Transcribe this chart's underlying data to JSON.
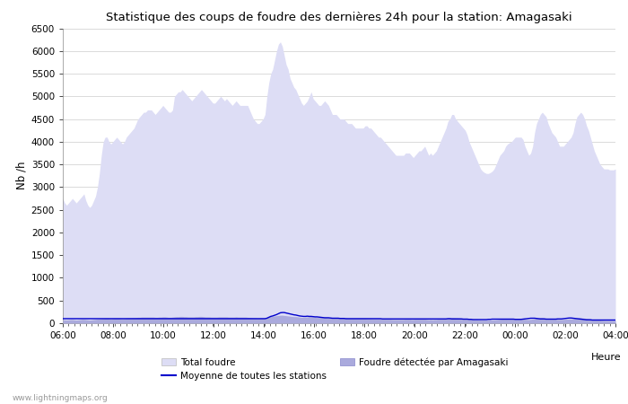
{
  "title": "Statistique des coups de foudre des dernières 24h pour la station: Amagasaki",
  "ylabel": "Nb /h",
  "xlabel": "Heure",
  "ylim": [
    0,
    6500
  ],
  "yticks": [
    0,
    500,
    1000,
    1500,
    2000,
    2500,
    3000,
    3500,
    4000,
    4500,
    5000,
    5500,
    6000,
    6500
  ],
  "xtick_labels": [
    "06:00",
    "08:00",
    "10:00",
    "12:00",
    "14:00",
    "16:00",
    "18:00",
    "20:00",
    "22:00",
    "00:00",
    "02:00",
    "04:00"
  ],
  "color_total": "#ddddf5",
  "color_station": "#aaaadd",
  "color_moyenne": "#0000cc",
  "watermark": "www.lightningmaps.org",
  "legend_total": "Total foudre",
  "legend_moyenne": "Moyenne de toutes les stations",
  "legend_station": "Foudre détectée par Amagasaki",
  "total_foudre": [
    2750,
    2650,
    2600,
    2650,
    2700,
    2750,
    2700,
    2650,
    2700,
    2750,
    2800,
    2850,
    2700,
    2600,
    2550,
    2600,
    2700,
    2800,
    3000,
    3300,
    3700,
    4000,
    4100,
    4100,
    4000,
    3950,
    4000,
    4050,
    4100,
    4050,
    4000,
    3950,
    4000,
    4100,
    4150,
    4200,
    4250,
    4300,
    4400,
    4500,
    4550,
    4600,
    4650,
    4650,
    4700,
    4700,
    4700,
    4650,
    4600,
    4650,
    4700,
    4750,
    4800,
    4750,
    4700,
    4650,
    4650,
    4700,
    5000,
    5050,
    5100,
    5100,
    5150,
    5100,
    5050,
    5000,
    4950,
    4900,
    4950,
    5000,
    5050,
    5100,
    5150,
    5100,
    5050,
    5000,
    4950,
    4900,
    4850,
    4850,
    4900,
    4950,
    5000,
    4950,
    4900,
    4950,
    4900,
    4850,
    4800,
    4850,
    4900,
    4850,
    4800,
    4800,
    4800,
    4800,
    4800,
    4700,
    4600,
    4500,
    4450,
    4400,
    4400,
    4450,
    4500,
    4600,
    5000,
    5300,
    5500,
    5600,
    5800,
    6000,
    6150,
    6200,
    6100,
    5900,
    5700,
    5600,
    5400,
    5300,
    5200,
    5150,
    5050,
    4950,
    4850,
    4800,
    4850,
    4900,
    5000,
    5100,
    4950,
    4900,
    4850,
    4800,
    4800,
    4850,
    4900,
    4850,
    4800,
    4700,
    4600,
    4600,
    4600,
    4550,
    4500,
    4500,
    4500,
    4450,
    4400,
    4400,
    4400,
    4350,
    4300,
    4300,
    4300,
    4300,
    4300,
    4350,
    4350,
    4300,
    4300,
    4250,
    4200,
    4150,
    4100,
    4100,
    4050,
    4000,
    3950,
    3900,
    3850,
    3800,
    3750,
    3700,
    3700,
    3700,
    3700,
    3700,
    3750,
    3750,
    3750,
    3700,
    3650,
    3700,
    3750,
    3800,
    3800,
    3850,
    3900,
    3800,
    3700,
    3750,
    3700,
    3750,
    3800,
    3900,
    4000,
    4100,
    4200,
    4300,
    4450,
    4500,
    4600,
    4600,
    4500,
    4450,
    4400,
    4350,
    4300,
    4250,
    4150,
    4000,
    3900,
    3800,
    3700,
    3600,
    3500,
    3400,
    3350,
    3320,
    3300,
    3300,
    3320,
    3350,
    3400,
    3500,
    3600,
    3700,
    3750,
    3800,
    3900,
    3950,
    3980,
    4000,
    4050,
    4100,
    4100,
    4100,
    4100,
    4050,
    3900,
    3800,
    3700,
    3750,
    3900,
    4200,
    4400,
    4500,
    4600,
    4650,
    4600,
    4550,
    4400,
    4300,
    4200,
    4150,
    4100,
    4000,
    3900,
    3900,
    3900,
    3950,
    4000,
    4050,
    4100,
    4200,
    4400,
    4550,
    4600,
    4650,
    4600,
    4500,
    4350,
    4250,
    4100,
    3950,
    3800,
    3700,
    3600,
    3500,
    3450,
    3400,
    3400,
    3400,
    3380,
    3380,
    3380,
    3400
  ],
  "station_foudre": [
    80,
    75,
    70,
    75,
    80,
    80,
    75,
    70,
    75,
    80,
    85,
    85,
    80,
    75,
    70,
    75,
    80,
    85,
    90,
    95,
    100,
    105,
    110,
    110,
    105,
    100,
    105,
    110,
    110,
    110,
    105,
    100,
    105,
    110,
    115,
    115,
    120,
    120,
    125,
    130,
    130,
    135,
    135,
    135,
    135,
    135,
    135,
    135,
    130,
    130,
    135,
    135,
    140,
    140,
    135,
    130,
    130,
    135,
    140,
    145,
    145,
    150,
    150,
    145,
    145,
    140,
    140,
    140,
    140,
    145,
    145,
    150,
    150,
    145,
    140,
    140,
    140,
    135,
    135,
    135,
    135,
    140,
    140,
    140,
    140,
    140,
    135,
    135,
    135,
    135,
    140,
    135,
    135,
    135,
    135,
    135,
    130,
    125,
    120,
    115,
    115,
    110,
    110,
    115,
    115,
    120,
    130,
    140,
    150,
    155,
    160,
    165,
    170,
    175,
    175,
    170,
    165,
    160,
    155,
    150,
    145,
    145,
    140,
    135,
    130,
    130,
    135,
    140,
    145,
    145,
    140,
    140,
    135,
    130,
    130,
    135,
    135,
    130,
    125,
    125,
    125,
    125,
    120,
    120,
    120,
    115,
    115,
    115,
    110,
    110,
    110,
    110,
    110,
    110,
    110,
    110,
    110,
    110,
    105,
    105,
    105,
    100,
    100,
    100,
    100,
    100,
    95,
    95,
    90,
    90,
    90,
    85,
    85,
    85,
    85,
    85,
    85,
    85,
    90,
    90,
    90,
    85,
    85,
    90,
    90,
    90,
    90,
    90,
    90,
    85,
    80,
    85,
    80,
    85,
    85,
    90,
    95,
    95,
    100,
    105,
    115,
    120,
    125,
    125,
    120,
    120,
    115,
    110,
    110,
    105,
    100,
    95,
    90,
    85,
    80,
    80,
    75,
    70,
    70,
    70,
    70,
    70,
    70,
    70,
    70,
    75,
    80,
    85,
    90,
    90,
    95,
    95,
    95,
    95,
    95,
    95,
    95,
    95,
    95,
    95,
    90,
    85,
    80,
    85,
    90,
    100,
    110,
    115,
    120,
    120,
    115,
    110,
    105,
    100,
    95,
    95,
    90,
    85,
    85,
    85,
    85,
    90,
    90,
    95,
    95,
    100,
    110,
    115,
    120,
    120,
    115,
    110,
    105,
    100,
    95,
    85,
    80,
    75,
    70,
    68,
    65,
    62,
    60,
    60,
    60,
    60,
    60,
    62
  ],
  "moyenne": [
    100,
    100,
    100,
    100,
    100,
    100,
    100,
    100,
    100,
    100,
    100,
    100,
    100,
    100,
    100,
    100,
    100,
    100,
    100,
    100,
    100,
    100,
    100,
    100,
    100,
    100,
    100,
    100,
    100,
    100,
    100,
    100,
    100,
    100,
    100,
    100,
    100,
    100,
    100,
    100,
    100,
    100,
    100,
    100,
    100,
    100,
    100,
    100,
    100,
    100,
    100,
    100,
    100,
    100,
    100,
    100,
    100,
    100,
    100,
    100,
    100,
    100,
    100,
    100,
    100,
    100,
    100,
    100,
    100,
    100,
    100,
    100,
    100,
    100,
    100,
    100,
    100,
    100,
    100,
    100,
    100,
    100,
    100,
    100,
    100,
    100,
    100,
    100,
    100,
    100,
    100,
    100,
    100,
    100,
    100,
    100,
    100,
    100,
    100,
    100,
    100,
    100,
    100,
    100,
    100,
    100,
    110,
    130,
    150,
    160,
    175,
    190,
    210,
    230,
    235,
    235,
    225,
    215,
    205,
    195,
    185,
    180,
    170,
    160,
    155,
    150,
    150,
    155,
    150,
    150,
    145,
    140,
    140,
    135,
    130,
    125,
    120,
    120,
    120,
    115,
    110,
    110,
    110,
    110,
    105,
    105,
    105,
    100,
    100,
    100,
    100,
    100,
    100,
    100,
    100,
    100,
    100,
    100,
    100,
    100,
    100,
    100,
    100,
    100,
    100,
    100,
    95,
    95,
    95,
    95,
    95,
    95,
    95,
    95,
    95,
    95,
    95,
    95,
    95,
    95,
    95,
    95,
    95,
    95,
    95,
    95,
    95,
    95,
    95,
    95,
    95,
    95,
    95,
    95,
    95,
    95,
    95,
    95,
    95,
    95,
    100,
    100,
    95,
    95,
    95,
    95,
    95,
    95,
    90,
    90,
    90,
    85,
    85,
    80,
    80,
    80,
    80,
    80,
    80,
    80,
    80,
    85,
    85,
    90,
    90,
    90,
    90,
    90,
    90,
    90,
    90,
    90,
    90,
    90,
    90,
    85,
    85,
    85,
    85,
    90,
    95,
    100,
    105,
    110,
    110,
    110,
    105,
    100,
    95,
    95,
    95,
    90,
    90,
    90,
    90,
    90,
    90,
    95,
    95,
    95,
    100,
    105,
    110,
    115,
    115,
    110,
    105,
    100,
    95,
    90,
    85,
    80,
    75,
    75,
    75,
    70,
    70,
    70,
    70,
    70,
    70,
    70,
    70,
    70,
    70,
    70,
    70,
    70
  ]
}
